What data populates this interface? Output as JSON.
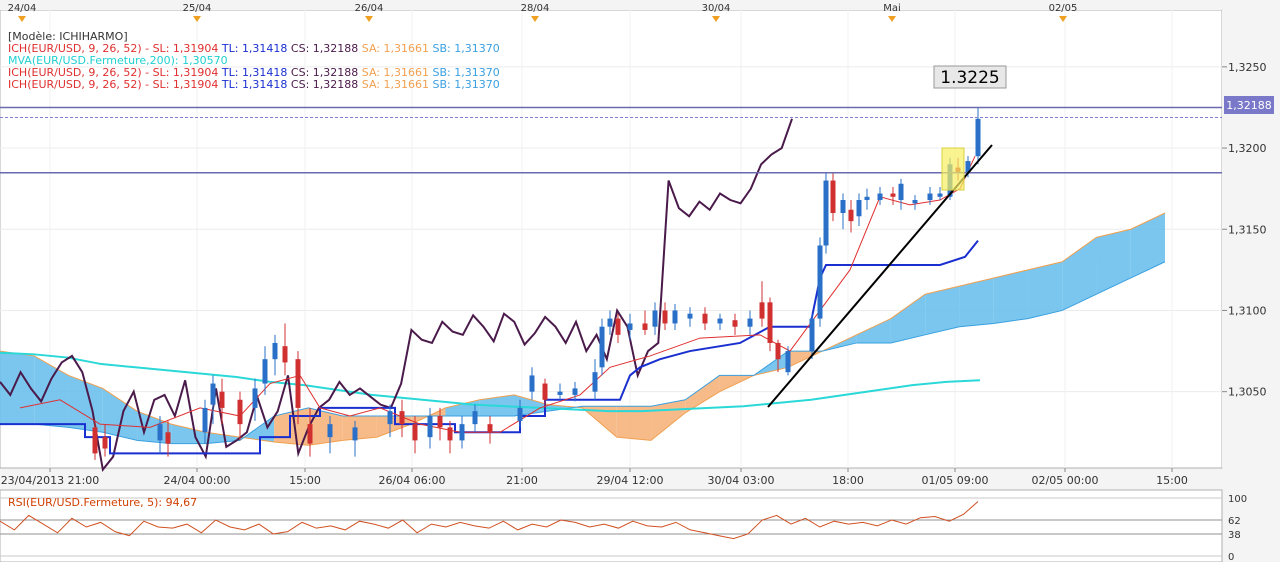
{
  "top_dates": [
    "24/04",
    "25/04",
    "26/04",
    "28/04",
    "30/04",
    "Mai",
    "02/05"
  ],
  "legend": {
    "model": "[Modèle: ICHIHARMO]",
    "lines": [
      {
        "parts": [
          {
            "t": "ICH(EUR/USD, 9, 26, 52) - ",
            "c": "#e03030"
          },
          {
            "t": "SL: 1,31904",
            "c": "#e03030"
          },
          {
            "t": "TL: 1,31418",
            "c": "#1a2fd0"
          },
          {
            "t": "CS: 1,32188",
            "c": "#4a1a4a"
          },
          {
            "t": "SA: 1,31661",
            "c": "#f0a050"
          },
          {
            "t": "SB: 1,31370",
            "c": "#3aa0e0"
          }
        ]
      },
      {
        "parts": [
          {
            "t": "MVA(EUR/USD.Fermeture,200): 1,30570",
            "c": "#20d0d0"
          }
        ]
      },
      {
        "parts": [
          {
            "t": "ICH(EUR/USD, 9, 26, 52) - ",
            "c": "#e03030"
          },
          {
            "t": "SL: 1,31904",
            "c": "#e03030"
          },
          {
            "t": "TL: 1,31418",
            "c": "#1a2fd0"
          },
          {
            "t": "CS: 1,32188",
            "c": "#4a1a4a"
          },
          {
            "t": "SA: 1,31661",
            "c": "#f0a050"
          },
          {
            "t": "SB: 1,31370",
            "c": "#3aa0e0"
          }
        ]
      },
      {
        "parts": [
          {
            "t": "ICH(EUR/USD, 9, 26, 52) - ",
            "c": "#e03030"
          },
          {
            "t": "SL: 1,31904",
            "c": "#e03030"
          },
          {
            "t": "TL: 1,31418",
            "c": "#1a2fd0"
          },
          {
            "t": "CS: 1,32188",
            "c": "#4a1a4a"
          },
          {
            "t": "SA: 1,31661",
            "c": "#f0a050"
          },
          {
            "t": "SB: 1,31370",
            "c": "#3aa0e0"
          }
        ]
      }
    ]
  },
  "price_label": "1.3225",
  "current_price": "1,32188",
  "rsi_label": "RSI(EUR/USD.Fermeture, 5): 94,67",
  "rsi_axis": [
    "100",
    "62",
    "38",
    "0"
  ],
  "chart_data": {
    "type": "line",
    "ylim": [
      1.3003,
      1.3285
    ],
    "yticks": [
      "1,3250",
      "1,3200",
      "1,3150",
      "1,3100",
      "1,3050"
    ],
    "ytick_values": [
      1.325,
      1.32,
      1.315,
      1.31,
      1.305
    ],
    "xticks": [
      "23/04/2013 21:00",
      "24/04 00:00",
      "15:00",
      "26/04 06:00",
      "21:00",
      "29/04 12:00",
      "30/04 03:00",
      "18:00",
      "01/05 09:00",
      "02/05 00:00",
      "15:00"
    ],
    "horizontal_levels": [
      1.3225,
      1.31848
    ],
    "current_price_value": 1.32188,
    "series": [
      {
        "name": "CS",
        "color": "#4a1a4a",
        "values": [
          1.3056,
          1.3048,
          1.3062,
          1.3052,
          1.3044,
          1.3058,
          1.3068,
          1.3072,
          1.3062,
          1.3038,
          1.3002,
          1.301,
          1.3038,
          1.305,
          1.3025,
          1.3045,
          1.3048,
          1.3035,
          1.3057,
          1.3022,
          1.301,
          1.3052,
          1.3016,
          1.302,
          1.3025,
          1.3047,
          1.3028,
          1.3038,
          1.306,
          1.3012,
          1.3028,
          1.304,
          1.3045,
          1.3056,
          1.3048,
          1.3052,
          1.3047,
          1.3042,
          1.304,
          1.3055,
          1.3088,
          1.3082,
          1.308,
          1.3093,
          1.3087,
          1.3085,
          1.3097,
          1.309,
          1.3081,
          1.3098,
          1.3093,
          1.3079,
          1.3086,
          1.3096,
          1.309,
          1.308,
          1.3093,
          1.3075,
          1.3085,
          1.307,
          1.31,
          1.309,
          1.306,
          1.3075,
          1.308,
          1.318,
          1.3163,
          1.3158,
          1.3167,
          1.3162,
          1.3172,
          1.3168,
          1.3166,
          1.3175,
          1.319,
          1.3196,
          1.32,
          1.3218
        ]
      },
      {
        "name": "MVA",
        "color": "#2ad8d8",
        "values": [
          1.3074,
          1.3073,
          1.3071,
          1.3067,
          1.3065,
          1.3063,
          1.3061,
          1.3059,
          1.3056,
          1.3054,
          1.3051,
          1.3048,
          1.3046,
          1.3044,
          1.3042,
          1.3041,
          1.304,
          1.3039,
          1.3038,
          1.3038,
          1.3039,
          1.304,
          1.3041,
          1.3043,
          1.3045,
          1.3048,
          1.3051,
          1.3054,
          1.3056,
          1.3057
        ]
      },
      {
        "name": "SA",
        "color": "#f0a050",
        "values": [
          1.3075,
          1.3072,
          1.306,
          1.3052,
          1.3038,
          1.303,
          1.3025,
          1.3022,
          1.3019,
          1.3017,
          1.302,
          1.3022,
          1.303,
          1.304,
          1.3045,
          1.3048,
          1.3042,
          1.304,
          1.3022,
          1.302,
          1.3037,
          1.305,
          1.306,
          1.3065,
          1.3075,
          1.3085,
          1.3095,
          1.311,
          1.3115,
          1.312,
          1.3125,
          1.313,
          1.3145,
          1.315,
          1.316
        ]
      },
      {
        "name": "SB",
        "color": "#3aa0e0",
        "values": [
          1.303,
          1.303,
          1.3028,
          1.3025,
          1.302,
          1.3018,
          1.3018,
          1.302,
          1.3035,
          1.304,
          1.3035,
          1.3035,
          1.3035,
          1.3035,
          1.3035,
          1.3035,
          1.3038,
          1.3041,
          1.3041,
          1.3041,
          1.3045,
          1.306,
          1.306,
          1.3075,
          1.3075,
          1.308,
          1.308,
          1.3085,
          1.309,
          1.3092,
          1.3095,
          1.31,
          1.311,
          1.312,
          1.313
        ]
      },
      {
        "name": "RSI",
        "color": "#d05020",
        "values": [
          60,
          45,
          70,
          55,
          40,
          65,
          50,
          58,
          42,
          35,
          60,
          50,
          48,
          55,
          40,
          62,
          50,
          45,
          55,
          38,
          42,
          58,
          48,
          52,
          45,
          60,
          55,
          48,
          62,
          40,
          55,
          50,
          58,
          52,
          48,
          60,
          45,
          55,
          50,
          62,
          58,
          50,
          55,
          48,
          60,
          52,
          50,
          58,
          45,
          40,
          35,
          30,
          38,
          62,
          70,
          55,
          65,
          50,
          60,
          55,
          58,
          52,
          62,
          55,
          66,
          68,
          60,
          72,
          94
        ]
      }
    ]
  }
}
